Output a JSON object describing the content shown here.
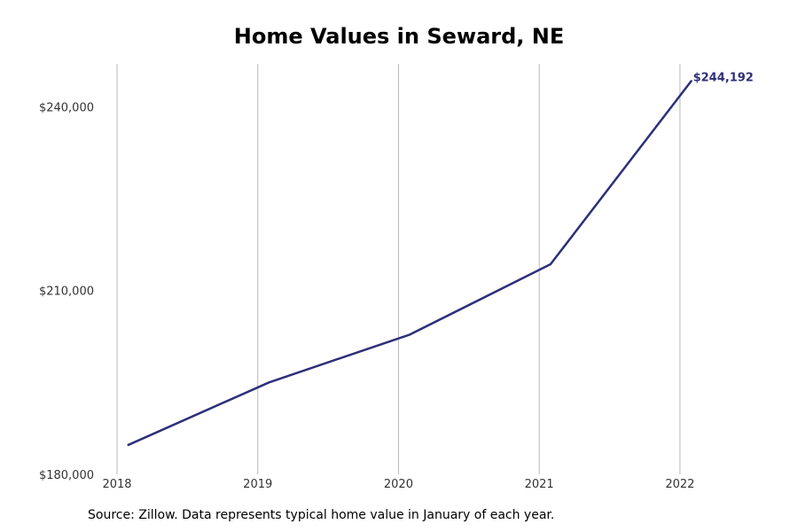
{
  "chart_data": {
    "type": "line",
    "title": "Home Values in Seward, NE",
    "xlabel": "",
    "ylabel": "",
    "x": [
      2018.08,
      2019.08,
      2020.08,
      2021.08,
      2022.08
    ],
    "series": [
      {
        "values": [
          184800,
          195000,
          202800,
          214300,
          244192
        ],
        "color": "#2e2f78"
      }
    ],
    "end_label": "$244,192",
    "xticks": [
      2018,
      2019,
      2020,
      2021,
      2022
    ],
    "xtick_labels": [
      "2018",
      "2019",
      "2020",
      "2021",
      "2022"
    ],
    "yticks": [
      180000,
      210000,
      240000
    ],
    "ytick_labels": [
      "$180,000",
      "$210,000",
      "$240,000"
    ],
    "xlim": [
      2018,
      2022.7
    ],
    "ylim": [
      180000,
      247000
    ],
    "grid": "vertical",
    "legend": "none"
  },
  "footer": {
    "source": "Source: Zillow. Data represents typical home value in January of each year."
  }
}
